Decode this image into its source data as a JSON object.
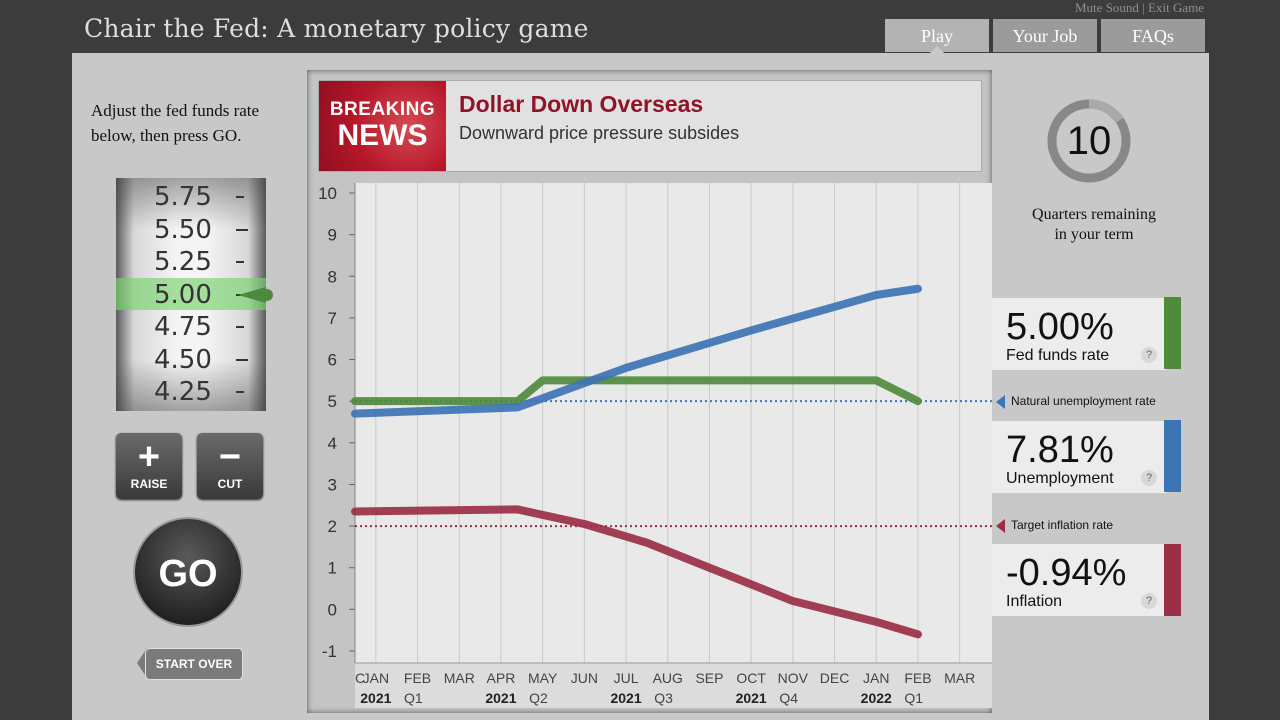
{
  "header": {
    "title": "Chair the Fed: A monetary policy game",
    "mute_sound": "Mute Sound",
    "separator": "|",
    "exit_game": "Exit Game",
    "tabs": [
      {
        "label": "Play",
        "active": true
      },
      {
        "label": "Your Job",
        "active": false
      },
      {
        "label": "FAQs",
        "active": false
      }
    ]
  },
  "controls": {
    "instructions": "Adjust the fed funds rate below, then press GO.",
    "dial_values": [
      "5.75",
      "5.50",
      "5.25",
      "5.00",
      "4.75",
      "4.50",
      "4.25"
    ],
    "selected_value": "5.00",
    "raise_label": "RAISE",
    "cut_label": "CUT",
    "go_label": "GO",
    "start_over_label": "START OVER"
  },
  "news": {
    "badge_line1": "BREAKING",
    "badge_line2": "NEWS",
    "headline": "Dollar Down Overseas",
    "subhead": "Downward price pressure subsides"
  },
  "timer": {
    "quarters_remaining": "10",
    "caption_line1": "Quarters remaining",
    "caption_line2": "in your term"
  },
  "stats": {
    "fed_funds": {
      "value": "5.00%",
      "label": "Fed funds rate",
      "help": "?"
    },
    "natural_unemployment_label": "Natural unemployment rate",
    "unemployment": {
      "value": "7.81%",
      "label": "Unemployment",
      "help": "?"
    },
    "target_inflation_label": "Target inflation rate",
    "inflation": {
      "value": "-0.94%",
      "label": "Inflation",
      "help": "?"
    }
  },
  "colors": {
    "fed_funds": "#4f8a3d",
    "unemployment": "#3d74b4",
    "inflation": "#9a2f45"
  },
  "chart_data": {
    "type": "line",
    "ylim": [
      -1,
      10
    ],
    "yticks": [
      "10",
      "9",
      "8",
      "7",
      "6",
      "5",
      "4",
      "3",
      "2",
      "1",
      "0",
      "-1"
    ],
    "months": [
      "C",
      "JAN",
      "FEB",
      "MAR",
      "APR",
      "MAY",
      "JUN",
      "JUL",
      "AUG",
      "SEP",
      "OCT",
      "NOV",
      "DEC",
      "JAN",
      "FEB",
      "MAR"
    ],
    "periods": [
      {
        "year": "2021",
        "quarter": "Q1"
      },
      {
        "year": "2021",
        "quarter": "Q2"
      },
      {
        "year": "2021",
        "quarter": "Q3"
      },
      {
        "year": "2021",
        "quarter": "Q4"
      },
      {
        "year": "2022",
        "quarter": "Q1"
      }
    ],
    "reference_lines": [
      {
        "name": "Natural unemployment rate",
        "value": 5.0
      },
      {
        "name": "Target inflation rate",
        "value": 2.0
      }
    ],
    "series": [
      {
        "name": "Fed funds rate",
        "x": [
          0,
          3.4,
          4,
          12,
          13
        ],
        "values": [
          5.0,
          5.0,
          5.5,
          5.5,
          5.0
        ]
      },
      {
        "name": "Unemployment",
        "x": [
          0,
          3.4,
          6,
          9,
          12,
          13
        ],
        "values": [
          4.7,
          4.85,
          5.8,
          6.7,
          7.55,
          7.7
        ]
      },
      {
        "name": "Inflation",
        "x": [
          0,
          3.4,
          5,
          6.5,
          8,
          10,
          12,
          13
        ],
        "values": [
          2.35,
          2.4,
          2.05,
          1.6,
          1.0,
          0.2,
          -0.3,
          -0.6
        ]
      }
    ]
  }
}
